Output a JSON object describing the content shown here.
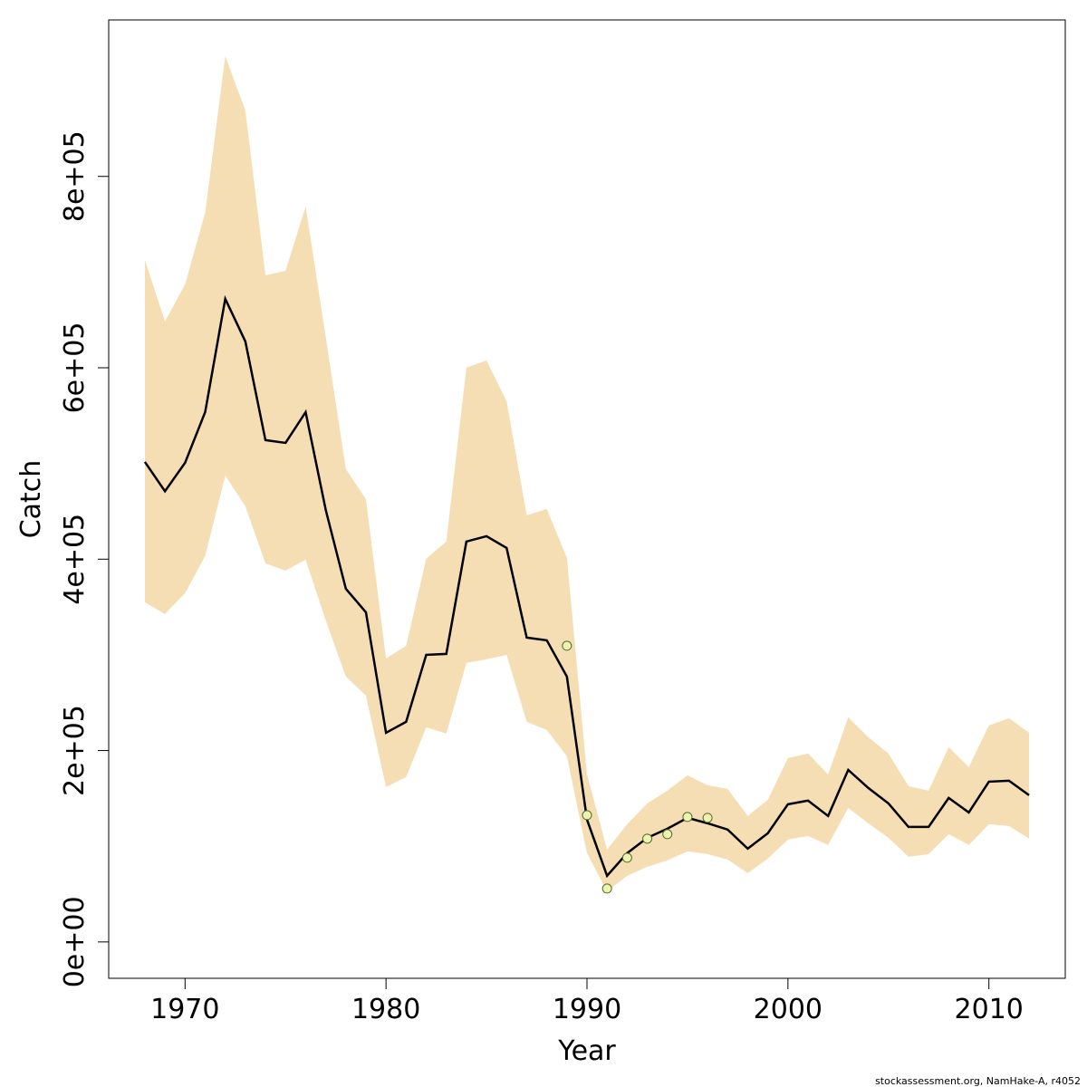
{
  "chart_data": {
    "type": "line",
    "xlabel": "Year",
    "ylabel": "Catch",
    "x": [
      1968,
      1969,
      1970,
      1971,
      1972,
      1973,
      1974,
      1975,
      1976,
      1977,
      1978,
      1979,
      1980,
      1981,
      1982,
      1983,
      1984,
      1985,
      1986,
      1987,
      1988,
      1989,
      1990,
      1991,
      1992,
      1993,
      1994,
      1995,
      1996,
      1997,
      1998,
      1999,
      2000,
      2001,
      2002,
      2003,
      2004,
      2005,
      2006,
      2007,
      2008,
      2009,
      2010,
      2011,
      2012
    ],
    "values": [
      501600,
      471000,
      500700,
      553700,
      672000,
      627500,
      524400,
      521500,
      553700,
      451500,
      369100,
      344500,
      218600,
      230000,
      300000,
      301000,
      418400,
      424000,
      411700,
      318000,
      315200,
      277300,
      127800,
      69100,
      92800,
      108800,
      118300,
      129700,
      124000,
      117400,
      97500,
      113600,
      143900,
      147700,
      131600,
      179800,
      160900,
      144800,
      120200,
      120200,
      150500,
      135300,
      167500,
      168500,
      153300
    ],
    "color": "#000000",
    "band": {
      "color": "#f5deb3",
      "upper": [
        712700,
        648400,
        687200,
        762000,
        925700,
        868900,
        696600,
        701400,
        768600,
        632300,
        494100,
        462800,
        296300,
        309500,
        400400,
        418400,
        600100,
        607700,
        565100,
        445800,
        452400,
        401300,
        175100,
        96500,
        123000,
        144800,
        158100,
        174200,
        163700,
        160000,
        131600,
        148600,
        192100,
        196900,
        175100,
        234700,
        213900,
        196900,
        162800,
        158100,
        203500,
        182700,
        226200,
        233800,
        218600
      ],
      "lower": [
        354900,
        342600,
        364400,
        403200,
        487400,
        455300,
        395600,
        388100,
        399400,
        336000,
        277300,
        257400,
        161900,
        172300,
        224300,
        217700,
        291500,
        295300,
        300000,
        230000,
        221500,
        194000,
        92800,
        53000,
        69100,
        78600,
        85200,
        94700,
        91800,
        86100,
        71900,
        87100,
        107000,
        110700,
        101300,
        140100,
        124000,
        108800,
        89000,
        91800,
        112600,
        101300,
        123000,
        121200,
        107900
      ]
    },
    "points": {
      "color": "#eef3b0",
      "stroke": "#556b2f",
      "x": [
        1989,
        1990,
        1991,
        1992,
        1993,
        1994,
        1995,
        1996
      ],
      "values": [
        309500,
        132500,
        55800,
        88000,
        107900,
        112600,
        130600,
        129700
      ]
    },
    "xlim": [
      1966.2,
      2013.8
    ],
    "ylim": [
      -38000,
      963500
    ],
    "xticks": [
      1970,
      1980,
      1990,
      2000,
      2010
    ],
    "yticks": [
      {
        "value": 0,
        "label": "0e+00"
      },
      {
        "value": 200000,
        "label": "2e+05"
      },
      {
        "value": 400000,
        "label": "4e+05"
      },
      {
        "value": 600000,
        "label": "6e+05"
      },
      {
        "value": 800000,
        "label": "8e+05"
      }
    ]
  },
  "footer": "stockassessment.org, NamHake-A, r4052"
}
